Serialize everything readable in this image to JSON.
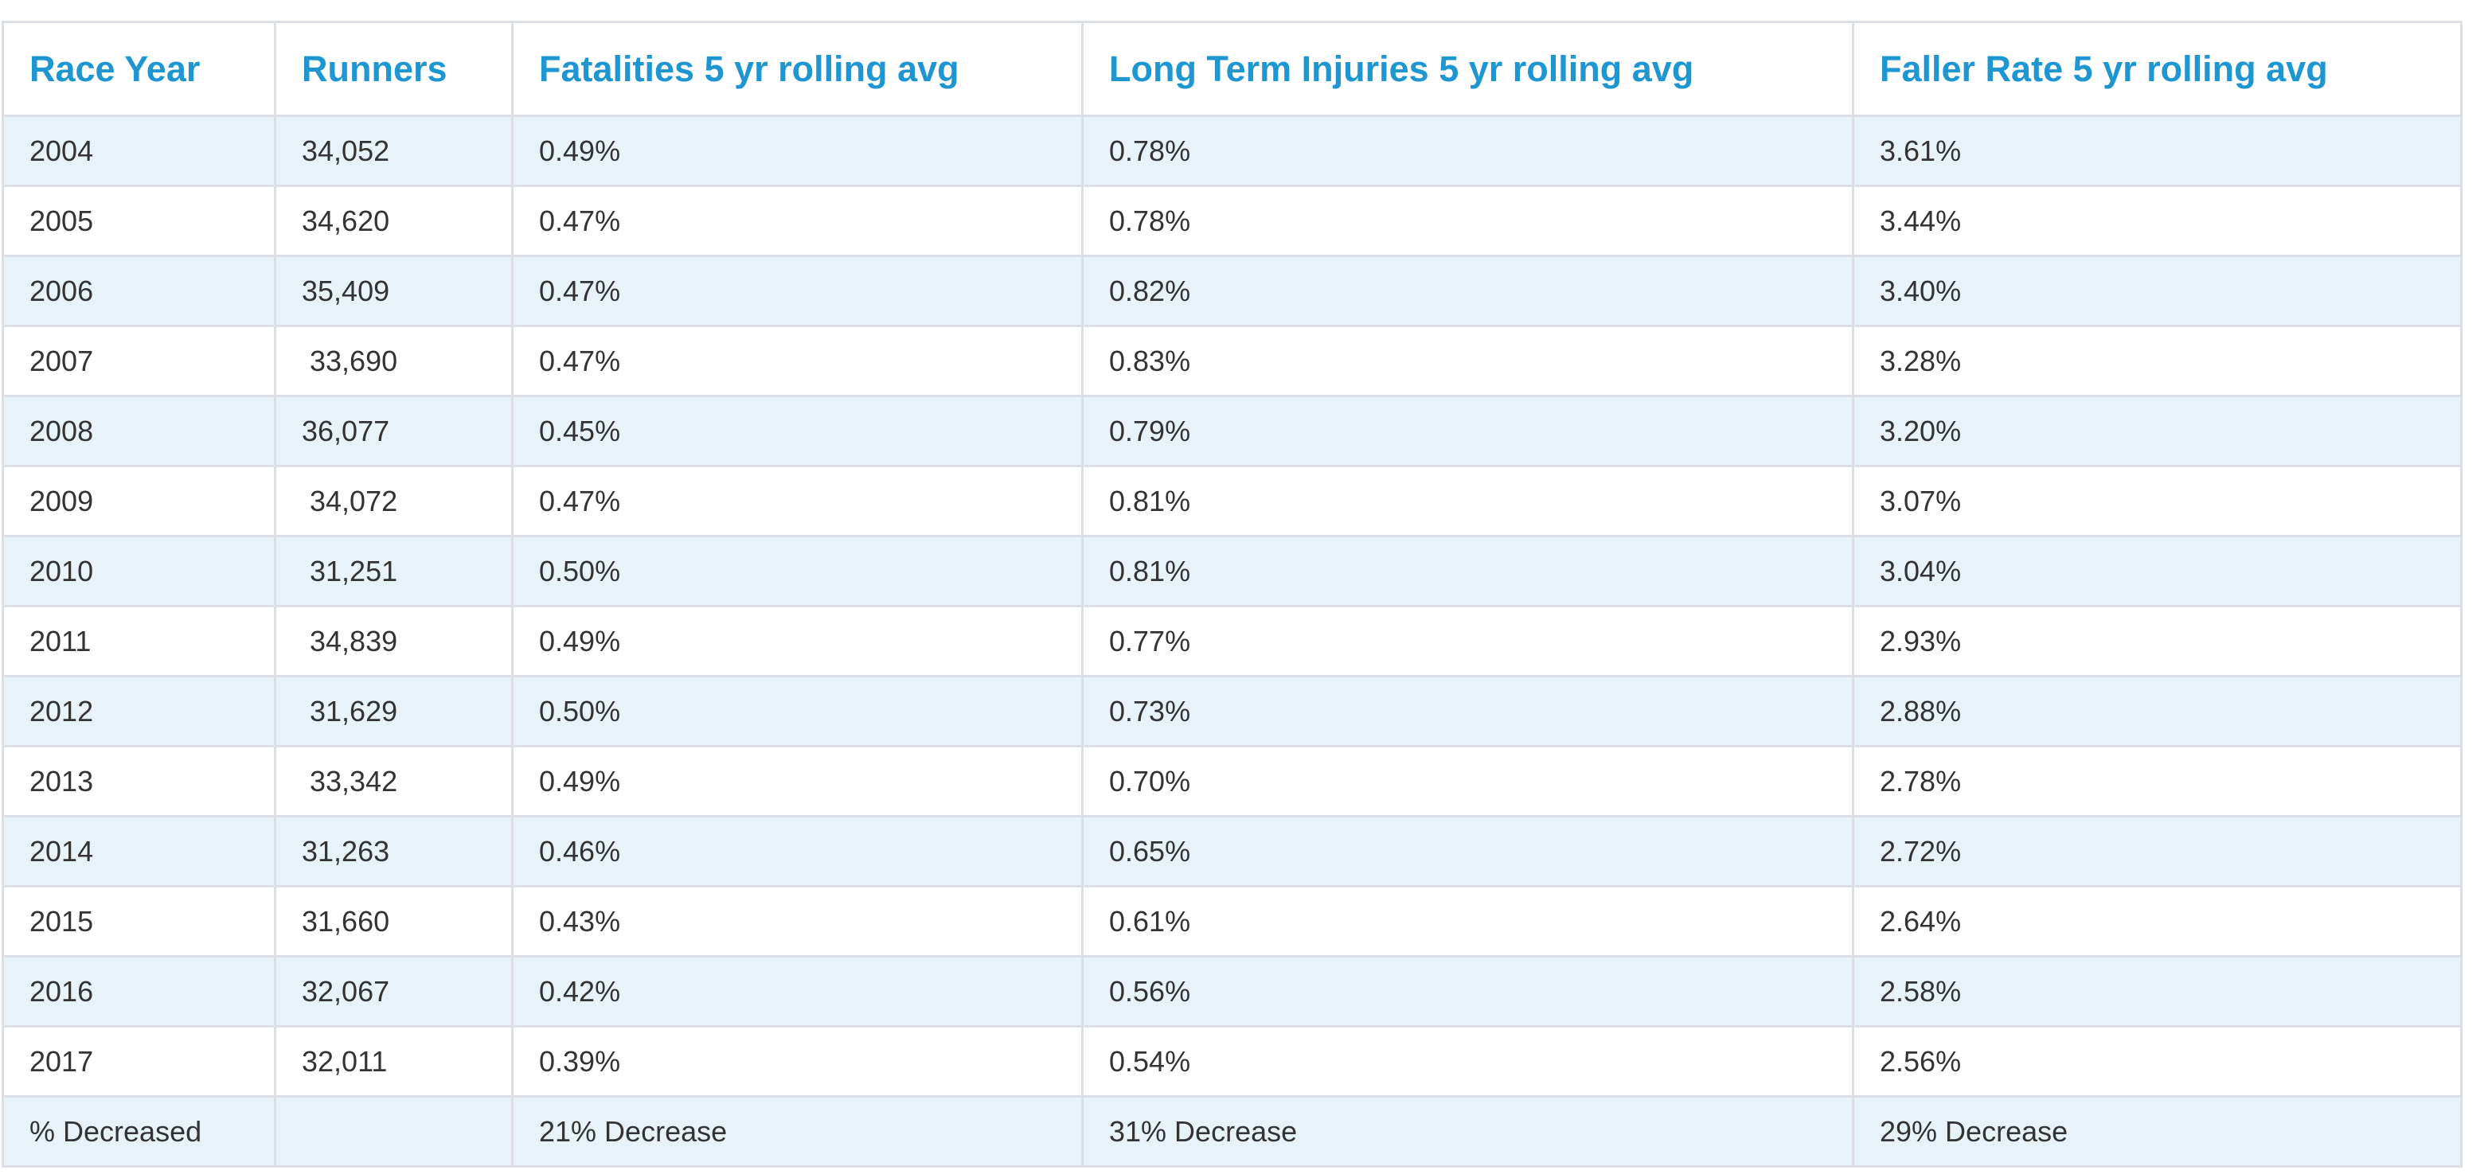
{
  "table": {
    "headers": [
      "Race Year",
      "Runners",
      "Fatalities 5 yr rolling avg",
      "Long Term Injuries 5 yr rolling avg",
      "Faller Rate 5 yr rolling avg"
    ],
    "rows": [
      [
        "2004",
        "34,052",
        "0.49%",
        "0.78%",
        "3.61%"
      ],
      [
        "2005",
        "34,620",
        "0.47%",
        "0.78%",
        "3.44%"
      ],
      [
        "2006",
        "35,409",
        "0.47%",
        "0.82%",
        "3.40%"
      ],
      [
        "2007",
        " 33,690",
        "0.47%",
        "0.83%",
        "3.28%"
      ],
      [
        "2008",
        "36,077",
        "0.45%",
        "0.79%",
        "3.20%"
      ],
      [
        "2009",
        " 34,072",
        "0.47%",
        "0.81%",
        "3.07%"
      ],
      [
        "2010",
        " 31,251",
        "0.50%",
        "0.81%",
        "3.04%"
      ],
      [
        "2011",
        " 34,839",
        "0.49%",
        "0.77%",
        "2.93%"
      ],
      [
        "2012",
        " 31,629",
        "0.50%",
        "0.73%",
        "2.88%"
      ],
      [
        "2013",
        " 33,342",
        "0.49%",
        "0.70%",
        "2.78%"
      ],
      [
        "2014",
        "31,263",
        "0.46%",
        "0.65%",
        "2.72%"
      ],
      [
        "2015",
        "31,660",
        "0.43%",
        "0.61%",
        "2.64%"
      ],
      [
        "2016",
        "32,067",
        "0.42%",
        "0.56%",
        "2.58%"
      ],
      [
        "2017",
        "32,011",
        "0.39%",
        "0.54%",
        "2.56%"
      ],
      [
        "% Decreased",
        "",
        "21% Decrease",
        "31% Decrease",
        "29% Decrease"
      ]
    ]
  },
  "colors": {
    "header_text": "#1e96d2",
    "body_text": "#333333",
    "stripe": "#e8f2f9",
    "border": "#dcdfe3"
  }
}
